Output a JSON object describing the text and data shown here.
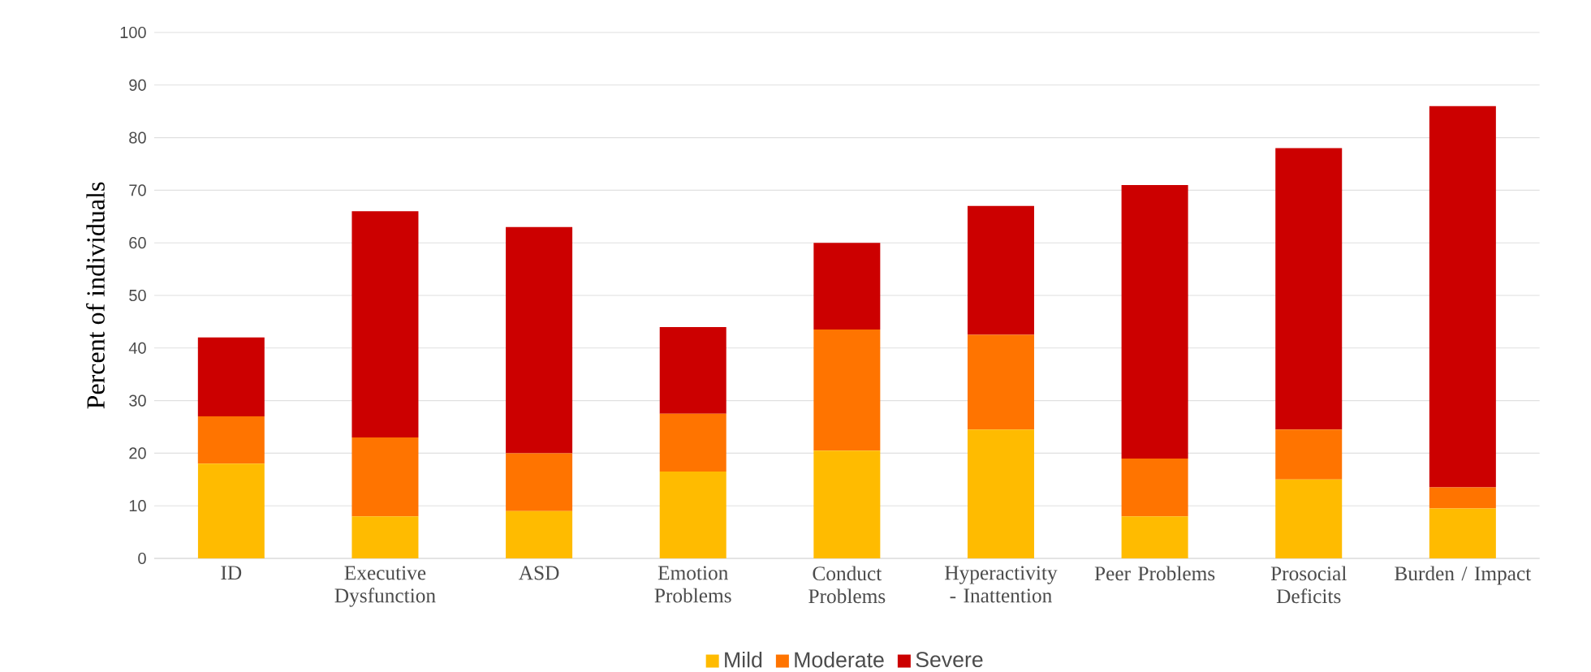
{
  "chart_data": {
    "type": "bar",
    "stacked": true,
    "ylabel": "Percent of individuals",
    "categories": [
      "ID",
      "Executive Dysfunction",
      "ASD",
      "Emotion Problems",
      "Conduct Problems",
      "Hyperactivity - Inattention",
      "Peer Problems",
      "Prosocial Deficits",
      "Burden / Impact"
    ],
    "series": [
      {
        "name": "Mild",
        "color": "#ffbb00",
        "values": [
          18,
          8,
          9,
          16.5,
          20.5,
          24.5,
          8,
          15,
          9.5
        ]
      },
      {
        "name": "Moderate",
        "color": "#ff7400",
        "values": [
          9,
          15,
          11,
          11,
          23,
          18,
          11,
          9.5,
          4
        ]
      },
      {
        "name": "Severe",
        "color": "#cc0000",
        "values": [
          15,
          43,
          43,
          16.5,
          16.5,
          24.5,
          52,
          53.5,
          72.5
        ]
      }
    ],
    "ylim": [
      0,
      100
    ],
    "yticks": [
      0,
      10,
      20,
      30,
      40,
      50,
      60,
      70,
      80,
      90,
      100
    ],
    "grid": "y",
    "legend": "bottom"
  }
}
